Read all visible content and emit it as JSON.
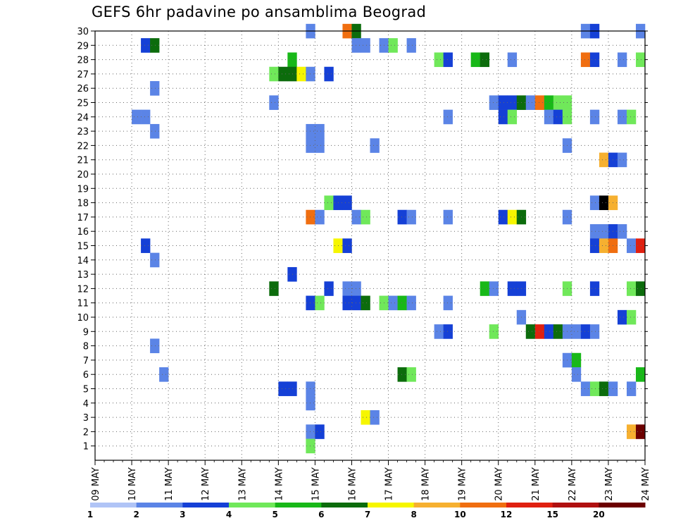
{
  "chart_data": {
    "type": "heatmap",
    "title": "GEFS 6hr padavine po ansamblima Beograd",
    "xlabel": "",
    "ylabel": "",
    "x_ticks": [
      "09 MAY",
      "10 MAY",
      "11 MAY",
      "12 MAY",
      "13 MAY",
      "14 MAY",
      "15 MAY",
      "16 MAY",
      "17 MAY",
      "18 MAY",
      "19 MAY",
      "20 MAY",
      "21 MAY",
      "22 MAY",
      "23 MAY",
      "24 MAY"
    ],
    "y_ticks": [
      "1",
      "2",
      "3",
      "4",
      "5",
      "6",
      "7",
      "8",
      "9",
      "10",
      "11",
      "12",
      "13",
      "14",
      "15",
      "16",
      "17",
      "18",
      "19",
      "20",
      "21",
      "22",
      "23",
      "24",
      "25",
      "26",
      "27",
      "28",
      "29",
      "30"
    ],
    "x_unit": "day index from 09 MAY (step 0.25 = 6h)",
    "ylim": [
      0,
      30
    ],
    "xlim": [
      0,
      15
    ],
    "grid": true,
    "legend": {
      "placement": "bottom",
      "labels": [
        "1",
        "2",
        "3",
        "4",
        "5",
        "6",
        "7",
        "8",
        "10",
        "12",
        "15",
        "20"
      ],
      "colors": [
        "#b0c4f6",
        "#5b84e6",
        "#1540d6",
        "#70e85a",
        "#18b818",
        "#0c6c0c",
        "#f6f600",
        "#f6b030",
        "#f06e10",
        "#e02010",
        "#b01010",
        "#6c0000"
      ]
    },
    "cells": [
      [
        5.75,
        30,
        1
      ],
      [
        6.75,
        30,
        8
      ],
      [
        7,
        30,
        5
      ],
      [
        13.25,
        30,
        1
      ],
      [
        13.5,
        30,
        2
      ],
      [
        14.75,
        30,
        1
      ],
      [
        1.25,
        29,
        2
      ],
      [
        1.5,
        29,
        5
      ],
      [
        7,
        29,
        1
      ],
      [
        7.25,
        29,
        1
      ],
      [
        7.75,
        29,
        1
      ],
      [
        8,
        29,
        3
      ],
      [
        8.5,
        29,
        1
      ],
      [
        5.25,
        28,
        4
      ],
      [
        9.25,
        28,
        3
      ],
      [
        9.5,
        28,
        2
      ],
      [
        10.25,
        28,
        4
      ],
      [
        10.5,
        28,
        5
      ],
      [
        11.25,
        28,
        1
      ],
      [
        13.25,
        28,
        8
      ],
      [
        13.5,
        28,
        2
      ],
      [
        14.25,
        28,
        1
      ],
      [
        14.75,
        28,
        3
      ],
      [
        4.75,
        27,
        3
      ],
      [
        5,
        27,
        5
      ],
      [
        5.25,
        27,
        5
      ],
      [
        5.5,
        27,
        6
      ],
      [
        5.75,
        27,
        1
      ],
      [
        6.25,
        27,
        2
      ],
      [
        1.5,
        26,
        1
      ],
      [
        4.75,
        25,
        1
      ],
      [
        10.75,
        25,
        1
      ],
      [
        11,
        25,
        2
      ],
      [
        11.25,
        25,
        2
      ],
      [
        11.5,
        25,
        5
      ],
      [
        11.75,
        25,
        1
      ],
      [
        12,
        25,
        8
      ],
      [
        12.25,
        25,
        4
      ],
      [
        12.5,
        25,
        3
      ],
      [
        12.75,
        25,
        3
      ],
      [
        1,
        24,
        1
      ],
      [
        1.25,
        24,
        1
      ],
      [
        9.5,
        24,
        1
      ],
      [
        11,
        24,
        2
      ],
      [
        11.25,
        24,
        3
      ],
      [
        12.25,
        24,
        1
      ],
      [
        12.5,
        24,
        2
      ],
      [
        12.75,
        24,
        3
      ],
      [
        13.5,
        24,
        1
      ],
      [
        14.25,
        24,
        1
      ],
      [
        14.5,
        24,
        3
      ],
      [
        1.5,
        23,
        1
      ],
      [
        5.75,
        23,
        1
      ],
      [
        6,
        23,
        1
      ],
      [
        5.75,
        22,
        1
      ],
      [
        6,
        22,
        1
      ],
      [
        7.5,
        22,
        1
      ],
      [
        12.75,
        22,
        1
      ],
      [
        13.75,
        21,
        7
      ],
      [
        14,
        21,
        2
      ],
      [
        14.25,
        21,
        1
      ],
      [
        6.25,
        18,
        3
      ],
      [
        6.5,
        18,
        2
      ],
      [
        6.75,
        18,
        2
      ],
      [
        13.5,
        18,
        1
      ],
      [
        13.75,
        18,
        12
      ],
      [
        14,
        18,
        7
      ],
      [
        5.75,
        17,
        8
      ],
      [
        6,
        17,
        1
      ],
      [
        7,
        17,
        1
      ],
      [
        7.25,
        17,
        3
      ],
      [
        8.25,
        17,
        2
      ],
      [
        8.5,
        17,
        1
      ],
      [
        9.5,
        17,
        1
      ],
      [
        11,
        17,
        2
      ],
      [
        11.25,
        17,
        6
      ],
      [
        11.5,
        17,
        5
      ],
      [
        12.75,
        17,
        1
      ],
      [
        13.5,
        16,
        1
      ],
      [
        13.75,
        16,
        1
      ],
      [
        14,
        16,
        2
      ],
      [
        14.25,
        16,
        1
      ],
      [
        1.25,
        15,
        2
      ],
      [
        6.5,
        15,
        6
      ],
      [
        6.75,
        15,
        2
      ],
      [
        13.5,
        15,
        2
      ],
      [
        13.75,
        15,
        7
      ],
      [
        14,
        15,
        8
      ],
      [
        14.5,
        15,
        1
      ],
      [
        14.75,
        15,
        9
      ],
      [
        1.5,
        14,
        1
      ],
      [
        5.25,
        13,
        2
      ],
      [
        4.75,
        12,
        5
      ],
      [
        6.25,
        12,
        2
      ],
      [
        6.75,
        12,
        1
      ],
      [
        7,
        12,
        1
      ],
      [
        10.5,
        12,
        4
      ],
      [
        10.75,
        12,
        1
      ],
      [
        11.25,
        12,
        2
      ],
      [
        11.5,
        12,
        2
      ],
      [
        12.75,
        12,
        3
      ],
      [
        13.5,
        12,
        2
      ],
      [
        14.5,
        12,
        3
      ],
      [
        14.75,
        12,
        5
      ],
      [
        5.75,
        11,
        2
      ],
      [
        6,
        11,
        3
      ],
      [
        6.75,
        11,
        2
      ],
      [
        7,
        11,
        2
      ],
      [
        7.25,
        11,
        5
      ],
      [
        7.75,
        11,
        3
      ],
      [
        8,
        11,
        1
      ],
      [
        8.25,
        11,
        4
      ],
      [
        8.5,
        11,
        1
      ],
      [
        9.5,
        11,
        1
      ],
      [
        11.5,
        10,
        1
      ],
      [
        14.25,
        10,
        2
      ],
      [
        14.5,
        10,
        3
      ],
      [
        9.25,
        9,
        1
      ],
      [
        9.5,
        9,
        2
      ],
      [
        10.75,
        9,
        3
      ],
      [
        11.75,
        9,
        5
      ],
      [
        12,
        9,
        9
      ],
      [
        12.25,
        9,
        2
      ],
      [
        12.5,
        9,
        5
      ],
      [
        12.75,
        9,
        1
      ],
      [
        13,
        9,
        1
      ],
      [
        13.25,
        9,
        2
      ],
      [
        13.5,
        9,
        1
      ],
      [
        1.5,
        8,
        1
      ],
      [
        12.75,
        7,
        1
      ],
      [
        13,
        7,
        4
      ],
      [
        1.75,
        6,
        1
      ],
      [
        8.25,
        6,
        5
      ],
      [
        8.5,
        6,
        3
      ],
      [
        13,
        6,
        1
      ],
      [
        14.75,
        6,
        4
      ],
      [
        5,
        5,
        2
      ],
      [
        5.25,
        5,
        2
      ],
      [
        5.75,
        5,
        1
      ],
      [
        13.25,
        5,
        1
      ],
      [
        13.5,
        5,
        3
      ],
      [
        13.75,
        5,
        5
      ],
      [
        14,
        5,
        1
      ],
      [
        14.5,
        5,
        1
      ],
      [
        5.75,
        4,
        1
      ],
      [
        7.25,
        3,
        6
      ],
      [
        7.5,
        3,
        1
      ],
      [
        5.75,
        2,
        1
      ],
      [
        6,
        2,
        2
      ],
      [
        14.5,
        2,
        7
      ],
      [
        14.75,
        2,
        11
      ],
      [
        5.75,
        1,
        3
      ]
    ]
  }
}
